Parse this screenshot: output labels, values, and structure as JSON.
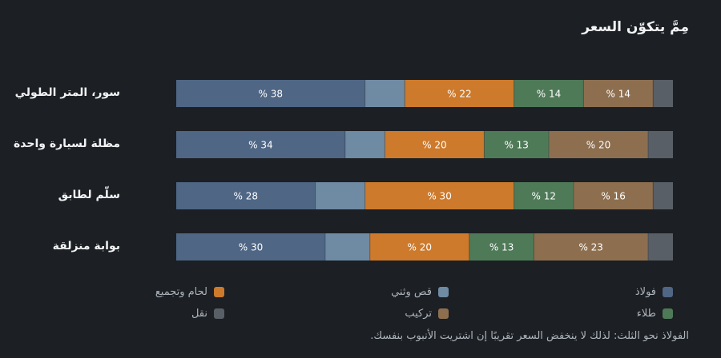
{
  "chart_data": {
    "type": "bar",
    "stacked": true,
    "orientation": "horizontal",
    "normalized_percent": true,
    "title": "مِمَّ يتكوّن السعر",
    "categories": [
      "سور، المتر الطولي",
      "مظلة لسيارة واحدة",
      "سلّم لطابق",
      "بوابة منزلقة"
    ],
    "series": [
      {
        "name": "فولاذ",
        "color": "#4f6685",
        "values": [
          38,
          34,
          28,
          30
        ]
      },
      {
        "name": "قص وثني",
        "color": "#6f8aa3",
        "values": [
          8,
          8,
          10,
          9
        ]
      },
      {
        "name": "لحام وتجميع",
        "color": "#cd7a2c",
        "values": [
          22,
          20,
          30,
          20
        ]
      },
      {
        "name": "طلاء",
        "color": "#4f7a58",
        "values": [
          14,
          13,
          12,
          13
        ]
      },
      {
        "name": "تركيب",
        "color": "#8d6f50",
        "values": [
          14,
          20,
          16,
          23
        ]
      },
      {
        "name": "نقل",
        "color": "#585f66",
        "values": [
          4,
          5,
          4,
          5
        ]
      }
    ],
    "label_format": "% {v}",
    "labeled_series": [
      0,
      2,
      3,
      4
    ],
    "legend_position": "bottom",
    "grid": false
  },
  "footnote": "الفولاذ نحو الثلث: لذلك لا ينخفض السعر تقريبًا إن اشتريت الأنبوب بنفسك."
}
